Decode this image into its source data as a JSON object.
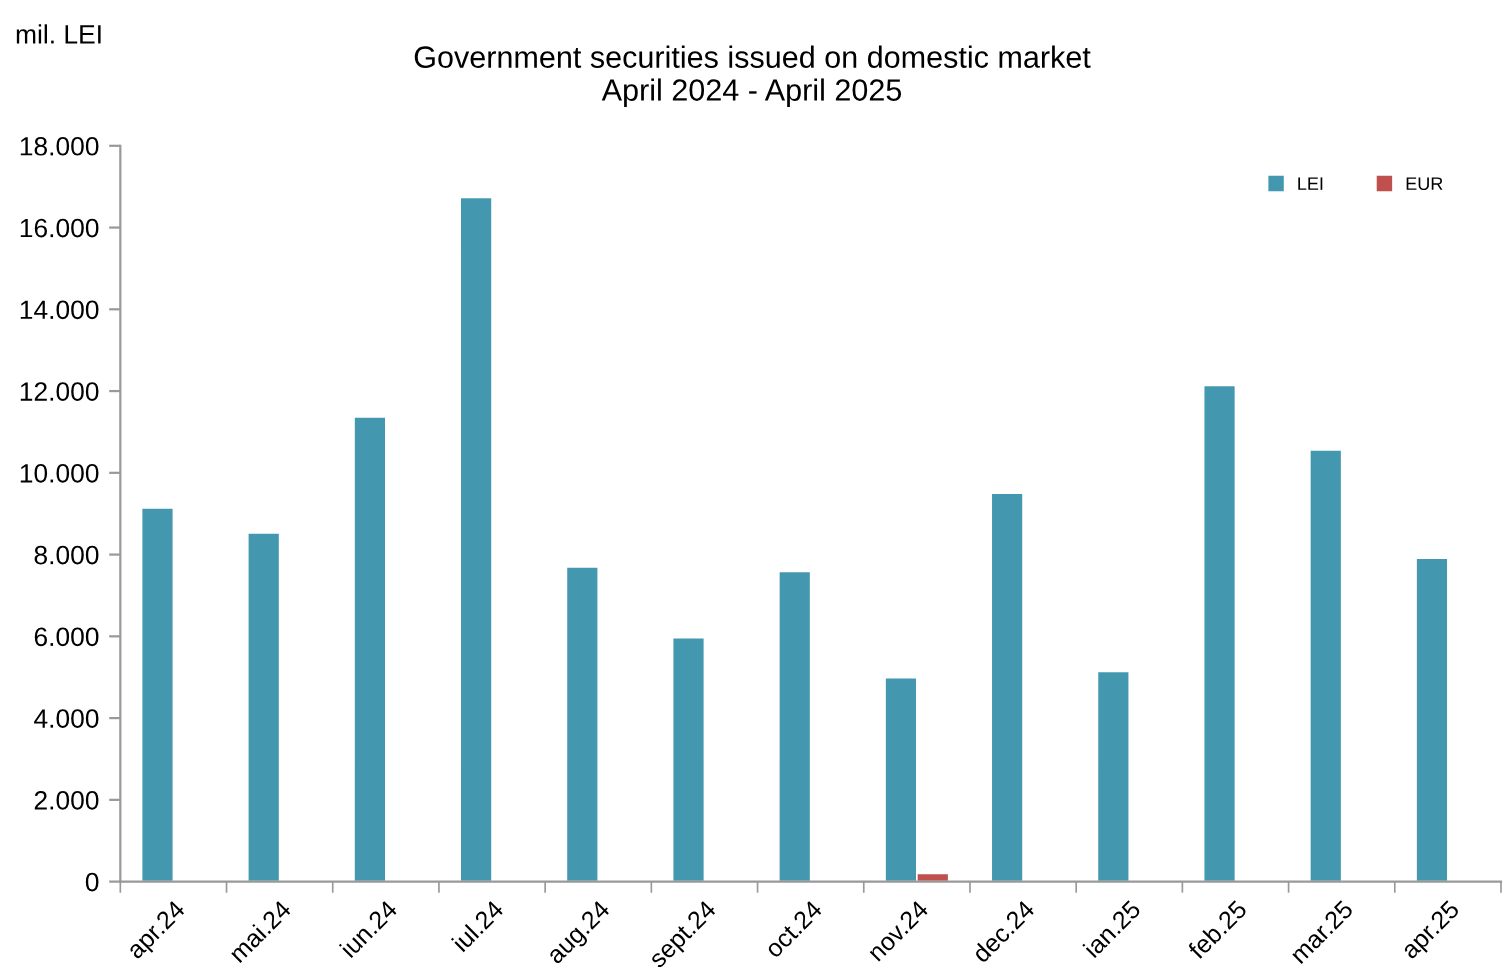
{
  "chart_data": {
    "type": "bar",
    "title": "Government securities issued on domestic market\nApril 2024 - April 2025",
    "ylabel": "mil. LEI",
    "categories": [
      "apr.24",
      "mai.24",
      "iun.24",
      "iul.24",
      "aug.24",
      "sept.24",
      "oct.24",
      "nov.24",
      "dec.24",
      "ian.25",
      "feb.25",
      "mar.25",
      "apr.25"
    ],
    "series": [
      {
        "name": "LEI",
        "color": "#4398b0",
        "values": [
          9140,
          8530,
          11370,
          16740,
          7700,
          5970,
          7590,
          4990,
          9500,
          5140,
          12140,
          10560,
          7910
        ]
      },
      {
        "name": "EUR",
        "color": "#c0504d",
        "values": [
          null,
          null,
          null,
          null,
          null,
          null,
          null,
          200,
          null,
          null,
          null,
          null,
          null
        ]
      }
    ],
    "ylim": [
      0,
      18000
    ],
    "yticks": [
      {
        "value": 0,
        "label": "0"
      },
      {
        "value": 2000,
        "label": "2.000"
      },
      {
        "value": 4000,
        "label": "4.000"
      },
      {
        "value": 6000,
        "label": "6.000"
      },
      {
        "value": 8000,
        "label": "8.000"
      },
      {
        "value": 10000,
        "label": "10.000"
      },
      {
        "value": 12000,
        "label": "12.000"
      },
      {
        "value": 14000,
        "label": "14.000"
      },
      {
        "value": 16000,
        "label": "16.000"
      },
      {
        "value": 18000,
        "label": "18.000"
      }
    ],
    "grid": false,
    "legend": "top right"
  }
}
